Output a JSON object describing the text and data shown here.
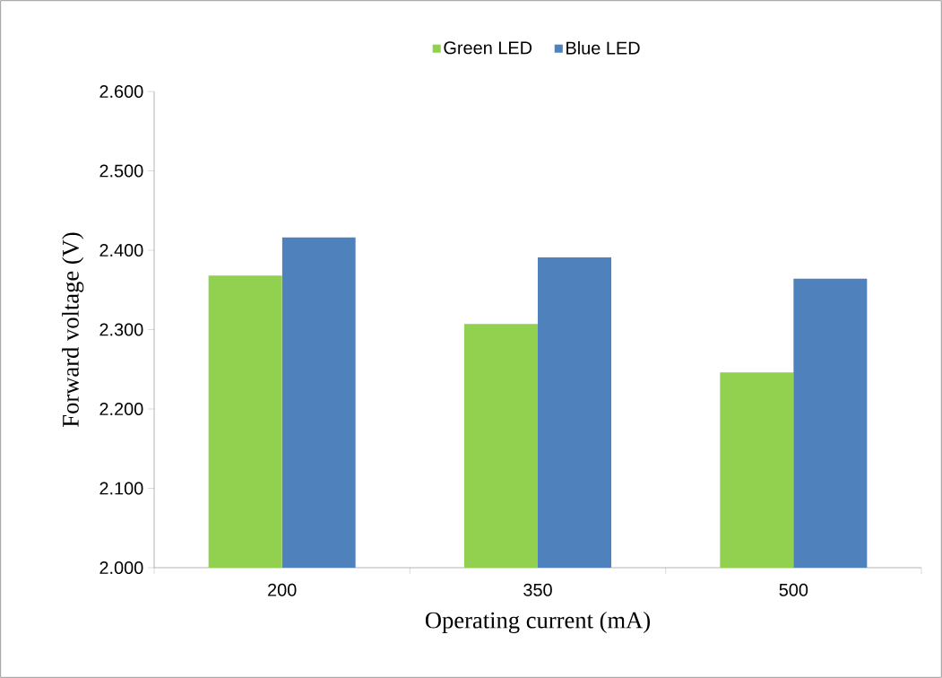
{
  "chart_data": {
    "type": "bar",
    "xlabel": "Operating current (mA)",
    "ylabel": "Forward voltage (V)",
    "categories": [
      "200",
      "350",
      "500"
    ],
    "series": [
      {
        "name": "Green LED",
        "color": "#92d050",
        "values": [
          2.368,
          2.307,
          2.246
        ]
      },
      {
        "name": "Blue LED",
        "color": "#4f81bd",
        "values": [
          2.416,
          2.391,
          2.364
        ]
      }
    ],
    "ylim": [
      2.0,
      2.6
    ],
    "yticks": [
      {
        "value": 2.0,
        "label": "2.000"
      },
      {
        "value": 2.1,
        "label": "2.100"
      },
      {
        "value": 2.2,
        "label": "2.200"
      },
      {
        "value": 2.3,
        "label": "2.300"
      },
      {
        "value": 2.4,
        "label": "2.400"
      },
      {
        "value": 2.5,
        "label": "2.500"
      },
      {
        "value": 2.6,
        "label": "2.600"
      }
    ],
    "grid": false,
    "legend": "top"
  }
}
